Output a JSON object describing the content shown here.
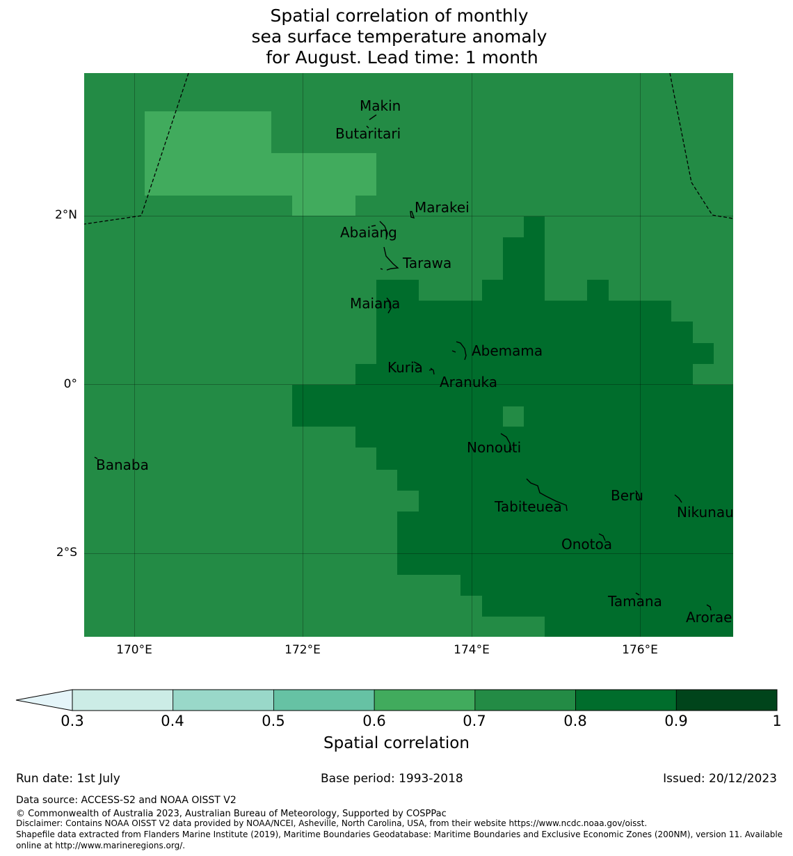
{
  "title": "Spatial correlation of monthly\nsea surface temperature anomaly\n for August. Lead time: 1 month",
  "map": {
    "lat_ticks": [
      "2°N",
      "0°",
      "2°S"
    ],
    "lon_ticks": [
      "170°E",
      "172°E",
      "174°E",
      "176°E"
    ],
    "islands": [
      {
        "name": "Makin"
      },
      {
        "name": "Butaritari"
      },
      {
        "name": "Marakei"
      },
      {
        "name": "Abaiang"
      },
      {
        "name": "Tarawa"
      },
      {
        "name": "Maiana"
      },
      {
        "name": "Abemama"
      },
      {
        "name": "Kuria"
      },
      {
        "name": "Aranuka"
      },
      {
        "name": "Banaba"
      },
      {
        "name": "Nonouti"
      },
      {
        "name": "Tabiteuea"
      },
      {
        "name": "Beru"
      },
      {
        "name": "Nikunau"
      },
      {
        "name": "Onotoa"
      },
      {
        "name": "Tamana"
      },
      {
        "name": "Arorae"
      }
    ],
    "colors": {
      "class_0_6_0_7": "#41ab5d",
      "class_0_7_0_8": "#238b45",
      "class_0_8_0_9": "#006d2c"
    }
  },
  "colorbar": {
    "label": "Spatial correlation",
    "ticks": [
      "0.3",
      "0.4",
      "0.5",
      "0.6",
      "0.7",
      "0.8",
      "0.9",
      "1"
    ],
    "colors": [
      "#ccece6",
      "#99d8c9",
      "#66c2a4",
      "#41ab5d",
      "#238b45",
      "#006d2c",
      "#00441b"
    ],
    "extend_color": "#e5f5f9"
  },
  "footer": {
    "run_date": "Run date: 1st July",
    "base_period": "Base period: 1993-2018",
    "issued": "Issued: 20/12/2023",
    "data_source": "Data source: ACCESS-S2 and NOAA OISST V2",
    "copyright": "© Commonwealth of Australia 2023, Australian Bureau of Meteorology, Supported by COSPPac",
    "disclaimer": "Disclaimer: Contains NOAA OISST V2 data provided by NOAA/NCEI, Asheville, North Carolina, USA, from their website https://www.ncdc.noaa.gov/oisst.",
    "shapefile_1": "Shapefile data extracted from Flanders Marine Institute (2019), Maritime Boundaries Geodatabase: Maritime Boundaries and Exclusive Economic Zones (200NM), version 11. Available",
    "shapefile_2": "online at http://www.marineregions.org/."
  }
}
